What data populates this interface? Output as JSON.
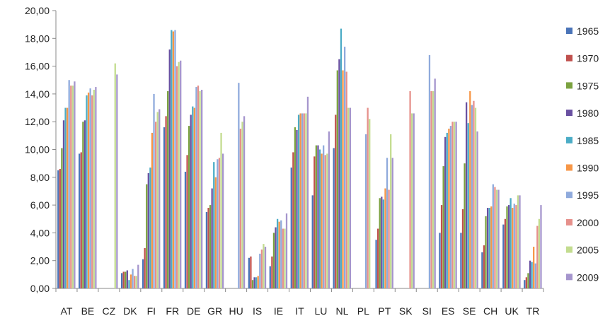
{
  "chart_data": {
    "type": "bar",
    "title": "",
    "xlabel": "",
    "ylabel": "",
    "ylim": [
      0,
      20
    ],
    "yticks": [
      "0,00",
      "2,00",
      "4,00",
      "6,00",
      "8,00",
      "10,00",
      "12,00",
      "14,00",
      "16,00",
      "18,00",
      "20,00"
    ],
    "grid": false,
    "legend_position": "right",
    "categories": [
      "AT",
      "BE",
      "CZ",
      "DK",
      "FI",
      "FR",
      "DE",
      "GR",
      "HU",
      "IS",
      "IE",
      "IT",
      "LU",
      "NL",
      "PL",
      "PT",
      "SK",
      "SI",
      "ES",
      "SE",
      "CH",
      "UK",
      "TR"
    ],
    "series": [
      {
        "name": "1965",
        "color": "#4a74b8",
        "values": [
          8.5,
          9.7,
          null,
          1.1,
          2.1,
          11.6,
          8.4,
          5.5,
          null,
          2.2,
          1.6,
          8.7,
          6.7,
          10.1,
          null,
          3.5,
          null,
          null,
          4.0,
          4.0,
          2.6,
          4.6,
          0.6
        ]
      },
      {
        "name": "1970",
        "color": "#c0504d",
        "values": [
          8.6,
          9.8,
          null,
          1.2,
          2.9,
          12.4,
          9.6,
          5.8,
          null,
          2.3,
          2.3,
          9.8,
          9.5,
          12.5,
          null,
          4.3,
          null,
          null,
          6.0,
          5.7,
          3.1,
          5.0,
          0.8
        ]
      },
      {
        "name": "1975",
        "color": "#7ba23f",
        "values": [
          10.1,
          12.0,
          null,
          1.2,
          7.5,
          14.2,
          11.7,
          6.0,
          null,
          0.6,
          4.0,
          11.6,
          10.3,
          15.7,
          null,
          6.5,
          null,
          null,
          8.8,
          9.0,
          5.2,
          5.9,
          1.1
        ]
      },
      {
        "name": "1980",
        "color": "#6950a1",
        "values": [
          12.1,
          12.1,
          null,
          1.3,
          8.3,
          17.2,
          12.5,
          7.2,
          null,
          0.8,
          4.4,
          11.4,
          10.3,
          16.5,
          null,
          6.6,
          null,
          null,
          10.9,
          13.4,
          5.8,
          6.0,
          2.0
        ]
      },
      {
        "name": "1985",
        "color": "#4bacc6",
        "values": [
          13.0,
          13.9,
          null,
          0.6,
          8.7,
          18.6,
          13.1,
          9.1,
          null,
          0.8,
          5.0,
          12.5,
          10.0,
          18.7,
          null,
          6.4,
          null,
          null,
          11.2,
          11.9,
          5.8,
          6.5,
          1.9
        ]
      },
      {
        "name": "1990",
        "color": "#f79646",
        "values": [
          13.0,
          14.1,
          null,
          1.0,
          11.2,
          18.5,
          13.0,
          8.0,
          null,
          0.9,
          4.8,
          12.6,
          9.7,
          15.7,
          null,
          7.2,
          null,
          null,
          11.5,
          14.2,
          5.9,
          5.8,
          3.0
        ]
      },
      {
        "name": "1995",
        "color": "#8faadc",
        "values": [
          15.0,
          14.4,
          null,
          1.4,
          14.0,
          18.6,
          14.5,
          9.3,
          14.8,
          2.5,
          4.9,
          12.6,
          10.3,
          17.4,
          11.1,
          9.4,
          null,
          16.8,
          11.7,
          13.2,
          7.5,
          6.1,
          1.8
        ]
      },
      {
        "name": "2000",
        "color": "#e6908b",
        "values": [
          14.6,
          13.9,
          null,
          0.9,
          12.0,
          16.0,
          14.6,
          9.4,
          11.5,
          2.8,
          4.3,
          12.6,
          9.6,
          15.6,
          13.0,
          7.1,
          14.2,
          14.2,
          12.0,
          13.5,
          7.3,
          6.0,
          4.5
        ]
      },
      {
        "name": "2005",
        "color": "#c3dc8f",
        "values": [
          14.6,
          14.3,
          16.2,
          0.9,
          12.7,
          16.3,
          14.2,
          11.2,
          12.0,
          3.2,
          4.3,
          12.6,
          9.7,
          13.0,
          12.2,
          11.1,
          12.6,
          14.2,
          12.0,
          13.0,
          7.1,
          6.7,
          5.0
        ]
      },
      {
        "name": "2009",
        "color": "#a595cd",
        "values": [
          14.9,
          14.5,
          15.4,
          1.7,
          12.9,
          16.4,
          14.3,
          9.7,
          12.4,
          3.0,
          5.4,
          13.8,
          11.3,
          13.0,
          null,
          9.4,
          12.6,
          15.1,
          12.0,
          11.3,
          7.1,
          6.7,
          6.0
        ]
      }
    ]
  }
}
